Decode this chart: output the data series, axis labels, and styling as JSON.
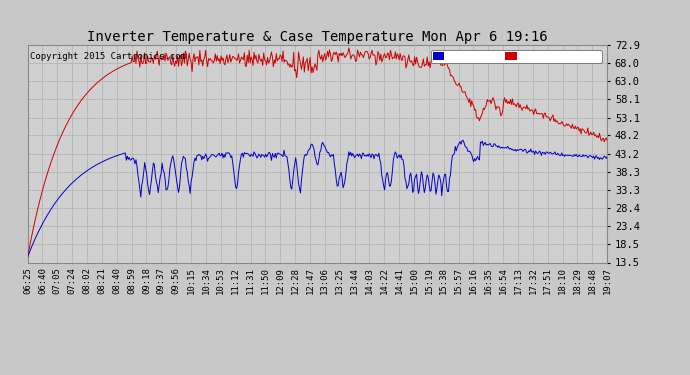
{
  "title": "Inverter Temperature & Case Temperature Mon Apr 6 19:16",
  "copyright": "Copyright 2015 Cartronics.com",
  "yticks": [
    13.5,
    18.5,
    23.4,
    28.4,
    33.3,
    38.3,
    43.2,
    48.2,
    53.1,
    58.1,
    63.0,
    68.0,
    72.9
  ],
  "ylim": [
    13.5,
    72.9
  ],
  "bg_color": "#c8c8c8",
  "plot_bg_color": "#d0d0d0",
  "grid_color": "#b0b0b0",
  "inverter_color": "#cc0000",
  "case_color": "#0000cc",
  "legend_case_bg": "#0000cc",
  "legend_inv_bg": "#cc0000",
  "xtick_labels": [
    "06:25",
    "06:40",
    "07:05",
    "07:24",
    "08:02",
    "08:21",
    "08:40",
    "08:59",
    "09:18",
    "09:37",
    "09:56",
    "10:15",
    "10:34",
    "10:53",
    "11:12",
    "11:31",
    "11:50",
    "12:09",
    "12:28",
    "12:47",
    "13:06",
    "13:25",
    "13:44",
    "14:03",
    "14:22",
    "14:41",
    "15:00",
    "15:19",
    "15:38",
    "15:57",
    "16:16",
    "16:35",
    "16:54",
    "17:13",
    "17:32",
    "17:51",
    "18:10",
    "18:29",
    "18:48",
    "19:07"
  ],
  "n_points": 600
}
